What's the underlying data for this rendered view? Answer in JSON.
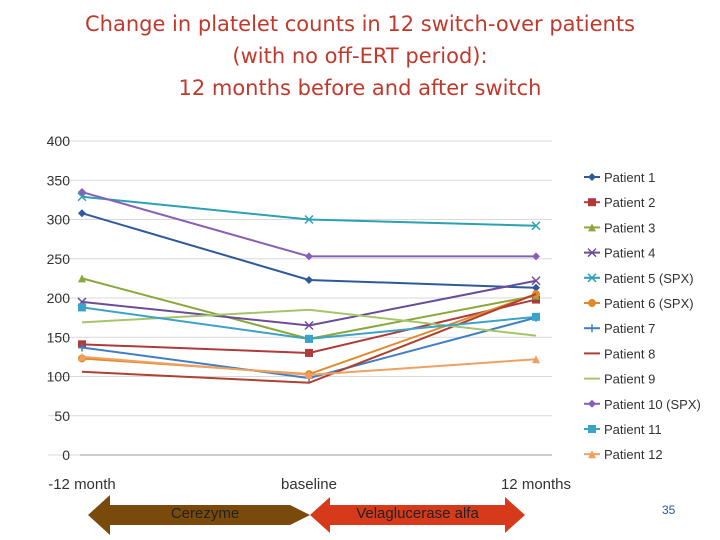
{
  "title": {
    "line1": "Change in platelet counts in 12 switch-over patients",
    "line2": "(with no off-ERT period):",
    "line3": "12 months before and after switch"
  },
  "chart_data": {
    "type": "line",
    "categories": [
      "-12 month",
      "baseline",
      "12 months"
    ],
    "ylim": [
      0,
      400
    ],
    "yticks": [
      0,
      50,
      100,
      150,
      200,
      250,
      300,
      350,
      400
    ],
    "grid": true,
    "legend_position": "right",
    "series": [
      {
        "name": "Patient 1",
        "values": [
          308,
          223,
          213
        ],
        "color": "#2e5a9c",
        "marker": "diamond"
      },
      {
        "name": "Patient 2",
        "values": [
          141,
          130,
          198
        ],
        "color": "#b03a3a",
        "marker": "square"
      },
      {
        "name": "Patient 3",
        "values": [
          225,
          148,
          203
        ],
        "color": "#8aa83a",
        "marker": "triangle"
      },
      {
        "name": "Patient 4",
        "values": [
          195,
          165,
          222
        ],
        "color": "#6b4c9a",
        "marker": "x"
      },
      {
        "name": "Patient 5 (SPX)",
        "values": [
          329,
          300,
          292
        ],
        "color": "#2aa1b5",
        "marker": "x"
      },
      {
        "name": "Patient 6 (SPX)",
        "values": [
          123,
          103,
          205
        ],
        "color": "#e08a2c",
        "marker": "circle"
      },
      {
        "name": "Patient 7",
        "values": [
          137,
          98,
          175
        ],
        "color": "#3f7fc6",
        "marker": "plus"
      },
      {
        "name": "Patient 8",
        "values": [
          106,
          92,
          205
        ],
        "color": "#b04030",
        "marker": "none"
      },
      {
        "name": "Patient 9",
        "values": [
          169,
          185,
          152
        ],
        "color": "#a6c46a",
        "marker": "none"
      },
      {
        "name": "Patient 10 (SPX)",
        "values": [
          335,
          253,
          253
        ],
        "color": "#8661b5",
        "marker": "diamond"
      },
      {
        "name": "Patient 11",
        "values": [
          188,
          148,
          176
        ],
        "color": "#3aa3c8",
        "marker": "square"
      },
      {
        "name": "Patient 12",
        "values": [
          125,
          102,
          122
        ],
        "color": "#f0a060",
        "marker": "triangle"
      }
    ]
  },
  "arrows": {
    "left": {
      "label": "Cerezyme",
      "color": "#7a4a0c"
    },
    "right": {
      "label": "Velaglucerase alfa",
      "color": "#d63a1a"
    }
  },
  "page_number": "35"
}
